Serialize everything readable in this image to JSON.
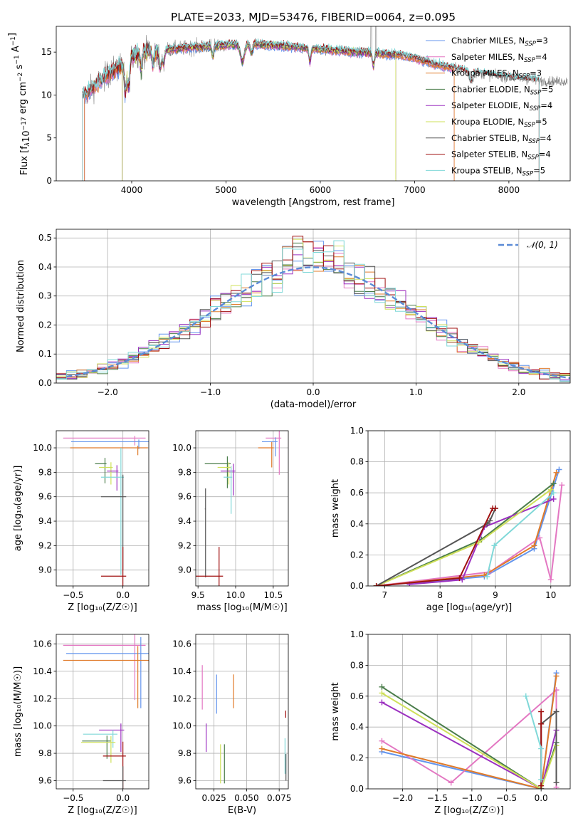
{
  "title": "PLATE=2033, MJD=53476, FIBERID=0064, z=0.095",
  "colors": {
    "chabrier_miles": "#6495ed",
    "salpeter_miles": "#e377c2",
    "kroupa_miles": "#e07b2a",
    "chabrier_elodie": "#4a7d4a",
    "salpeter_elodie": "#9b30c0",
    "kroupa_elodie": "#cfe05a",
    "chabrier_stelib": "#555555",
    "salpeter_stelib": "#a01010",
    "kroupa_stelib": "#80d8d8",
    "data": "#808080",
    "gaussian": "#5b8bd6"
  },
  "chart_data": [
    {
      "type": "line",
      "id": "spectrum",
      "xlabel": "wavelength [Angstrom, rest frame]",
      "ylabel": "Flux [f$_\\lambda$10$^{-17}$ erg cm$^{-2}$ s$^{-1}$ A$^{-1}$]",
      "ylabel_parts": [
        "Flux [f",
        "λ",
        "10",
        "−17",
        " erg cm",
        "−2",
        " s",
        "−1",
        " A",
        "−1",
        "]"
      ],
      "xlim": [
        3200,
        8650
      ],
      "ylim": [
        0,
        18
      ],
      "xticks": [
        4000,
        5000,
        6000,
        7000,
        8000
      ],
      "yticks": [
        0,
        5,
        10,
        15
      ],
      "legend_position": "top-right",
      "legend": [
        {
          "label": "Chabrier MILES, N",
          "sub": "SSP",
          "tail": "=3",
          "color_key": "chabrier_miles"
        },
        {
          "label": "Salpeter MILES, N",
          "sub": "SSP",
          "tail": "=4",
          "color_key": "salpeter_miles"
        },
        {
          "label": "Kroupa MILES, N",
          "sub": "SSP",
          "tail": "=3",
          "color_key": "kroupa_miles"
        },
        {
          "label": "Chabrier ELODIE, N",
          "sub": "SSP",
          "tail": "=5",
          "color_key": "chabrier_elodie"
        },
        {
          "label": "Salpeter ELODIE, N",
          "sub": "SSP",
          "tail": "=4",
          "color_key": "salpeter_elodie"
        },
        {
          "label": "Kroupa ELODIE, N",
          "sub": "SSP",
          "tail": "=5",
          "color_key": "kroupa_elodie"
        },
        {
          "label": "Chabrier STELIB, N",
          "sub": "SSP",
          "tail": "=4",
          "color_key": "chabrier_stelib"
        },
        {
          "label": "Salpeter STELIB, N",
          "sub": "SSP",
          "tail": "=4",
          "color_key": "salpeter_stelib"
        },
        {
          "label": "Kroupa STELIB, N",
          "sub": "SSP",
          "tail": "=5",
          "color_key": "kroupa_stelib"
        }
      ],
      "continuum": {
        "x": [
          3500,
          3600,
          3700,
          3800,
          3900,
          4000,
          4100,
          4300,
          4500,
          4700,
          5000,
          5300,
          5600,
          6000,
          6400,
          6800,
          7000,
          7200,
          7500,
          7800,
          8100,
          8400
        ],
        "y": [
          10.0,
          11.0,
          12.0,
          12.8,
          13.5,
          14.5,
          15.0,
          15.2,
          15.4,
          15.6,
          15.8,
          15.9,
          15.7,
          15.3,
          15.0,
          14.7,
          14.3,
          13.6,
          12.9,
          12.3,
          11.9,
          11.6
        ]
      },
      "data_range": [
        3480,
        8620
      ],
      "model_range": [
        3480,
        8320
      ]
    },
    {
      "type": "step",
      "id": "residuals",
      "xlabel": "(data-model)/error",
      "ylabel": "Normed distribution",
      "xlim": [
        -2.5,
        2.5
      ],
      "ylim": [
        0,
        0.53
      ],
      "xticks": [
        -2,
        -1,
        0,
        1,
        2
      ],
      "yticks": [
        0.0,
        0.1,
        0.2,
        0.3,
        0.4,
        0.5
      ],
      "legend_position": "top-right",
      "legend": [
        {
          "label": "𝒩(0, 1)",
          "color_key": "gaussian",
          "style": "dashed"
        }
      ],
      "bin_width": 0.1
    },
    {
      "type": "errorbar",
      "id": "age_vs_Z",
      "xlabel": "Z [log₁₀(Z/Z☉)]",
      "ylabel": "age  [log₁₀(age/yr)]",
      "xlim": [
        -0.67,
        0.26
      ],
      "ylim": [
        8.87,
        10.14
      ],
      "xticks": [
        -0.5,
        0.0
      ],
      "yticks": [
        9.0,
        9.2,
        9.4,
        9.6,
        9.8,
        10.0
      ],
      "points": [
        {
          "color_key": "salpeter_miles",
          "x": 0.12,
          "xerr": 0.72,
          "y": 10.08,
          "yerr": 0.06
        },
        {
          "color_key": "chabrier_miles",
          "x": 0.16,
          "xerr": 0.68,
          "y": 10.05,
          "yerr": 0.06
        },
        {
          "color_key": "kroupa_miles",
          "x": 0.15,
          "xerr": 0.68,
          "y": 10.0,
          "yerr": 0.06
        },
        {
          "color_key": "chabrier_elodie",
          "x": -0.18,
          "xerr": 0.1,
          "y": 9.87,
          "yerr": 0.16
        },
        {
          "color_key": "kroupa_elodie",
          "x": -0.12,
          "xerr": 0.12,
          "y": 9.84,
          "yerr": 0.14
        },
        {
          "color_key": "salpeter_elodie",
          "x": -0.06,
          "xerr": 0.1,
          "y": 9.81,
          "yerr": 0.16
        },
        {
          "color_key": "kroupa_stelib",
          "x": -0.02,
          "xerr": 0.2,
          "y": 9.76,
          "yerr": 0.8
        },
        {
          "color_key": "chabrier_stelib",
          "x": 0.0,
          "xerr": 0.22,
          "y": 9.6,
          "yerr": 0.6
        },
        {
          "color_key": "salpeter_stelib",
          "x": 0.0,
          "xerr": 0.22,
          "y": 8.95,
          "yerr": 0.8
        }
      ]
    },
    {
      "type": "errorbar",
      "id": "age_vs_mass",
      "xlabel": "mass [log₁₀(M/M☉)]",
      "xlim": [
        9.47,
        10.7
      ],
      "ylim": [
        8.87,
        10.14
      ],
      "xticks": [
        9.5,
        10.0,
        10.5
      ],
      "yticks": [
        9.0,
        9.2,
        9.4,
        9.6,
        9.8,
        10.0
      ],
      "points": [
        {
          "color_key": "salpeter_miles",
          "x": 10.58,
          "xerr": 0.18,
          "y": 10.08,
          "yerr": 0.3
        },
        {
          "color_key": "chabrier_miles",
          "x": 10.53,
          "xerr": 0.18,
          "y": 10.05,
          "yerr": 0.12
        },
        {
          "color_key": "kroupa_miles",
          "x": 10.48,
          "xerr": 0.18,
          "y": 10.0,
          "yerr": 0.16
        },
        {
          "color_key": "chabrier_elodie",
          "x": 9.89,
          "xerr": 0.3,
          "y": 9.87,
          "yerr": 0.2
        },
        {
          "color_key": "kroupa_elodie",
          "x": 9.91,
          "xerr": 0.15,
          "y": 9.84,
          "yerr": 0.14
        },
        {
          "color_key": "salpeter_elodie",
          "x": 9.97,
          "xerr": 0.17,
          "y": 9.81,
          "yerr": 0.2
        },
        {
          "color_key": "kroupa_stelib",
          "x": 9.94,
          "xerr": 0.1,
          "y": 9.76,
          "yerr": 0.3
        },
        {
          "color_key": "chabrier_stelib",
          "x": 9.6,
          "xerr": 0.01,
          "y": 9.5,
          "yerr": 0.56
        },
        {
          "color_key": "salpeter_stelib",
          "x": 9.78,
          "xerr": 0.35,
          "y": 8.95,
          "yerr": 0.8
        }
      ]
    },
    {
      "type": "line",
      "id": "mass_weight_vs_age",
      "xlabel": "age  [log₁₀(age/yr)]",
      "ylabel": "mass weight",
      "xlim": [
        6.7,
        10.35
      ],
      "ylim": [
        0.0,
        1.0
      ],
      "xticks": [
        7,
        8,
        9,
        10
      ],
      "yticks": [
        0.0,
        0.2,
        0.4,
        0.6,
        0.8,
        1.0
      ],
      "series": [
        {
          "color_key": "chabrier_miles",
          "x": [
            6.85,
            8.8,
            9.7,
            10.15
          ],
          "y": [
            0.0,
            0.06,
            0.24,
            0.75
          ]
        },
        {
          "color_key": "salpeter_miles",
          "x": [
            6.85,
            8.9,
            9.8,
            10.0,
            10.2
          ],
          "y": [
            0.0,
            0.09,
            0.31,
            0.04,
            0.65
          ]
        },
        {
          "color_key": "kroupa_miles",
          "x": [
            6.85,
            8.8,
            9.7,
            10.1
          ],
          "y": [
            0.0,
            0.07,
            0.26,
            0.73
          ]
        },
        {
          "color_key": "chabrier_elodie",
          "x": [
            6.85,
            8.75,
            10.05
          ],
          "y": [
            0.0,
            0.3,
            0.66
          ]
        },
        {
          "color_key": "salpeter_elodie",
          "x": [
            7.45,
            8.4,
            8.8,
            10.05
          ],
          "y": [
            0.01,
            0.04,
            0.38,
            0.56
          ]
        },
        {
          "color_key": "kroupa_elodie",
          "x": [
            6.85,
            8.7,
            10.0
          ],
          "y": [
            0.0,
            0.28,
            0.62
          ]
        },
        {
          "color_key": "chabrier_stelib",
          "x": [
            6.85,
            8.85,
            8.9,
            9.0
          ],
          "y": [
            0.0,
            0.4,
            0.42,
            0.5
          ]
        },
        {
          "color_key": "salpeter_stelib",
          "x": [
            6.85,
            8.35,
            8.95,
            9.0
          ],
          "y": [
            0.0,
            0.05,
            0.5,
            0.5
          ]
        },
        {
          "color_key": "kroupa_stelib",
          "x": [
            8.85,
            8.98,
            10.05
          ],
          "y": [
            0.06,
            0.26,
            0.6
          ]
        }
      ]
    },
    {
      "type": "errorbar",
      "id": "mass_vs_Z",
      "xlabel": "Z [log₁₀(Z/Z☉)]",
      "ylabel": "mass [log₁₀(M/M☉)]",
      "xlim": [
        -0.67,
        0.26
      ],
      "ylim": [
        9.54,
        10.67
      ],
      "xticks": [
        -0.5,
        0.0
      ],
      "yticks": [
        9.6,
        9.8,
        10.0,
        10.2,
        10.4,
        10.6
      ],
      "points": [
        {
          "color_key": "salpeter_miles",
          "x": 0.12,
          "xerr": 0.72,
          "y": 10.59,
          "yerr": 0.4
        },
        {
          "color_key": "chabrier_miles",
          "x": 0.18,
          "xerr": 0.75,
          "y": 10.53,
          "yerr": 0.4
        },
        {
          "color_key": "kroupa_miles",
          "x": 0.15,
          "xerr": 0.75,
          "y": 10.48,
          "yerr": 0.35
        },
        {
          "color_key": "salpeter_elodie",
          "x": -0.02,
          "xerr": 0.22,
          "y": 9.97,
          "yerr": 0.16
        },
        {
          "color_key": "kroupa_stelib",
          "x": -0.1,
          "xerr": 0.3,
          "y": 9.94,
          "yerr": 0.1
        },
        {
          "color_key": "chabrier_elodie",
          "x": -0.16,
          "xerr": 0.25,
          "y": 9.89,
          "yerr": 0.13
        },
        {
          "color_key": "kroupa_elodie",
          "x": -0.12,
          "xerr": 0.3,
          "y": 9.88,
          "yerr": 0.15
        },
        {
          "color_key": "salpeter_stelib",
          "x": 0.0,
          "xerr": 0.2,
          "y": 9.78,
          "yerr": 0.35
        },
        {
          "color_key": "chabrier_stelib",
          "x": 0.0,
          "xerr": 0.2,
          "y": 9.6,
          "yerr": 0.35
        }
      ]
    },
    {
      "type": "errorbar",
      "id": "mass_vs_ebv",
      "xlabel": "E(B-V)",
      "xlim": [
        0.011,
        0.082
      ],
      "ylim": [
        9.54,
        10.67
      ],
      "xticks": [
        0.025,
        0.05,
        0.075
      ],
      "yticks": [
        9.6,
        9.8,
        10.0,
        10.2,
        10.4,
        10.6
      ],
      "points": [
        {
          "color_key": "salpeter_miles",
          "x": 0.016,
          "y": 10.37,
          "yerr": 0.25
        },
        {
          "color_key": "salpeter_elodie",
          "x": 0.019,
          "y": 9.97,
          "yerr": 0.16
        },
        {
          "color_key": "chabrier_miles",
          "x": 0.027,
          "y": 10.31,
          "yerr": 0.22
        },
        {
          "color_key": "kroupa_elodie",
          "x": 0.03,
          "y": 9.8,
          "yerr": 0.22
        },
        {
          "color_key": "chabrier_elodie",
          "x": 0.033,
          "y": 9.8,
          "yerr": 0.22
        },
        {
          "color_key": "kroupa_miles",
          "x": 0.04,
          "y": 10.32,
          "yerr": 0.19
        },
        {
          "color_key": "salpeter_stelib",
          "x": 0.08,
          "y": 10.1,
          "yerr": 0.04
        },
        {
          "color_key": "kroupa_stelib",
          "x": 0.0795,
          "y": 9.85,
          "yerr": 0.2
        },
        {
          "color_key": "chabrier_stelib",
          "x": 0.0802,
          "y": 9.75,
          "yerr": 0.15
        }
      ]
    },
    {
      "type": "line",
      "id": "mass_weight_vs_Z",
      "xlabel": "Z [log₁₀(Z/Z☉)]",
      "ylabel": "mass weight",
      "xlim": [
        -2.5,
        0.42
      ],
      "ylim": [
        0.0,
        1.0
      ],
      "xticks": [
        -2.0,
        -1.5,
        -1.0,
        -0.5,
        0.0
      ],
      "yticks": [
        0.0,
        0.2,
        0.4,
        0.6,
        0.8,
        1.0
      ],
      "series": [
        {
          "color_key": "chabrier_miles",
          "x": [
            -2.3,
            0.0,
            0.22
          ],
          "y": [
            0.24,
            0.0,
            0.75
          ]
        },
        {
          "color_key": "salpeter_miles",
          "x": [
            -2.3,
            -1.3,
            0.22,
            0.22
          ],
          "y": [
            0.31,
            0.04,
            0.64,
            0.01
          ]
        },
        {
          "color_key": "kroupa_miles",
          "x": [
            -2.3,
            0.0,
            0.22
          ],
          "y": [
            0.26,
            0.0,
            0.73
          ]
        },
        {
          "color_key": "chabrier_elodie",
          "x": [
            -2.3,
            0.0,
            0.22
          ],
          "y": [
            0.66,
            0.0,
            0.3
          ]
        },
        {
          "color_key": "salpeter_elodie",
          "x": [
            -2.3,
            0.0,
            0.22
          ],
          "y": [
            0.56,
            0.0,
            0.38
          ]
        },
        {
          "color_key": "kroupa_elodie",
          "x": [
            -2.3,
            0.0,
            0.22
          ],
          "y": [
            0.62,
            0.0,
            0.28
          ]
        },
        {
          "color_key": "chabrier_stelib",
          "x": [
            0.0,
            0.0,
            0.22,
            0.22
          ],
          "y": [
            0.0,
            0.42,
            0.5,
            0.04
          ]
        },
        {
          "color_key": "salpeter_stelib",
          "x": [
            0.0,
            0.0,
            0.0
          ],
          "y": [
            0.02,
            0.5,
            0.42
          ]
        },
        {
          "color_key": "kroupa_stelib",
          "x": [
            -0.22,
            0.0,
            0.0
          ],
          "y": [
            0.6,
            0.26,
            0.06
          ]
        }
      ]
    }
  ]
}
